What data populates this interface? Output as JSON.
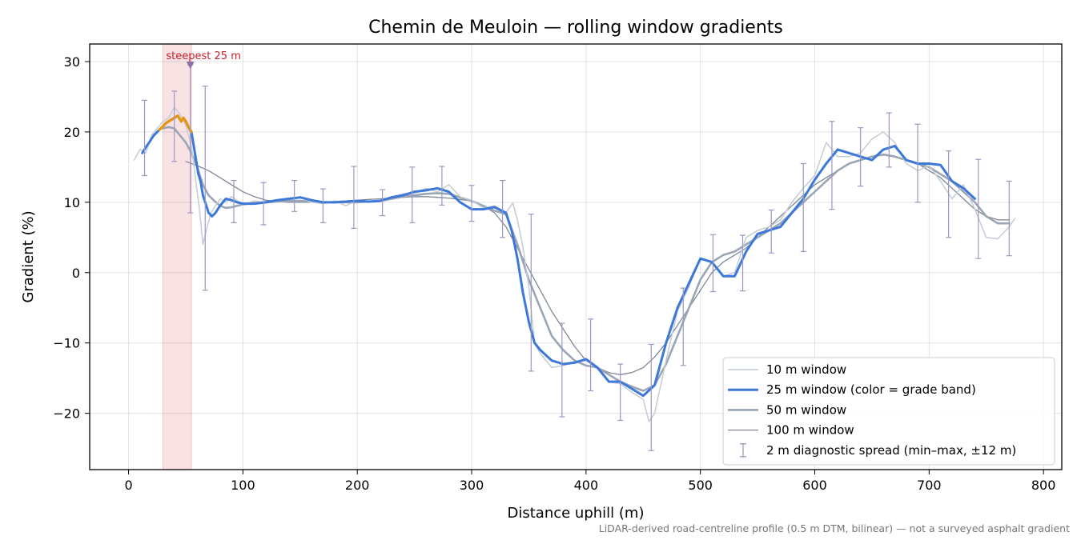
{
  "chart_data": {
    "type": "line",
    "title": "Chemin de Meuloin — rolling window gradients",
    "xlabel": "Distance uphill (m)",
    "ylabel": "Gradient (%)",
    "footnote": "LiDAR-derived road-centreline profile (0.5 m DTM, bilinear) — not a surveyed asphalt gradient",
    "xlim": [
      -34,
      816
    ],
    "ylim": [
      -28,
      32.5
    ],
    "x_ticks": [
      0,
      100,
      200,
      300,
      400,
      500,
      600,
      700,
      800
    ],
    "y_ticks": [
      30,
      20,
      10,
      0,
      -10,
      -20
    ],
    "y_tick_labels": [
      "30",
      "20",
      "10",
      "0",
      "−10",
      "−20"
    ],
    "grid": true,
    "legend_position": "lower-right",
    "highlight": {
      "label": "steepest 25 m",
      "x_start": 30,
      "x_end": 55,
      "peak_x": 54,
      "peak_y": 30,
      "color": "#c9202f"
    },
    "series": [
      {
        "name": "10 m window",
        "color": "#c4ccd6",
        "x": [
          5,
          10,
          15,
          20,
          25,
          30,
          35,
          40,
          45,
          50,
          55,
          58,
          62,
          65,
          68,
          72,
          76,
          80,
          85,
          90,
          100,
          110,
          120,
          130,
          140,
          150,
          160,
          170,
          180,
          190,
          200,
          210,
          220,
          230,
          240,
          250,
          260,
          270,
          280,
          290,
          300,
          310,
          320,
          330,
          336,
          340,
          345,
          350,
          355,
          360,
          370,
          380,
          390,
          400,
          410,
          420,
          430,
          440,
          450,
          455,
          460,
          470,
          480,
          490,
          500,
          510,
          520,
          530,
          540,
          550,
          560,
          570,
          580,
          590,
          600,
          610,
          620,
          630,
          640,
          650,
          660,
          670,
          680,
          690,
          700,
          710,
          720,
          730,
          740,
          750,
          760,
          770,
          775
        ],
        "y": [
          16,
          17.5,
          17,
          19.5,
          20.5,
          21.5,
          22,
          23.5,
          22.5,
          21,
          18,
          14,
          9,
          4,
          6,
          8.5,
          9.5,
          10.5,
          10,
          10.8,
          9.7,
          10.2,
          10,
          10.2,
          10.5,
          10.8,
          10,
          9.8,
          10.2,
          9.5,
          10.3,
          10.1,
          10.2,
          10.8,
          11.2,
          11.3,
          12,
          11.5,
          12.5,
          10.8,
          10.3,
          9.2,
          9.5,
          8.5,
          9.9,
          7.5,
          3.5,
          -2,
          -10,
          -11.5,
          -13.5,
          -13.2,
          -12.8,
          -12.5,
          -13.5,
          -15.5,
          -15.8,
          -17,
          -18,
          -21.2,
          -20,
          -12.5,
          -5.5,
          -2,
          2,
          1.5,
          -0.5,
          0,
          5,
          6,
          6.5,
          7.5,
          10,
          12,
          13.8,
          18.5,
          16.5,
          16.5,
          17,
          19,
          20,
          18.5,
          15.5,
          14.5,
          15.2,
          13,
          10.5,
          12.5,
          9,
          5,
          4.8,
          6.5,
          7.7
        ]
      },
      {
        "name": "25 m window (color = grade band)",
        "color": "#3c78d8",
        "highlight_color": "#e6960c",
        "x": [
          12,
          15,
          18,
          22,
          25,
          27,
          30,
          33,
          36,
          40,
          43,
          46,
          48,
          50,
          53,
          55,
          58,
          61,
          63,
          65,
          68,
          70,
          73,
          76,
          80,
          85,
          90,
          95,
          100,
          110,
          120,
          130,
          140,
          150,
          160,
          170,
          180,
          190,
          200,
          210,
          220,
          230,
          240,
          250,
          260,
          270,
          280,
          290,
          300,
          310,
          320,
          330,
          335,
          340,
          345,
          350,
          355,
          360,
          370,
          380,
          390,
          400,
          410,
          420,
          430,
          440,
          450,
          460,
          470,
          480,
          490,
          500,
          510,
          520,
          530,
          540,
          550,
          560,
          570,
          580,
          590,
          600,
          610,
          620,
          630,
          640,
          650,
          660,
          670,
          680,
          690,
          700,
          710,
          720,
          730,
          740
        ],
        "y": [
          17,
          17.8,
          18.5,
          19.5,
          20,
          20.3,
          20.8,
          21.3,
          21.6,
          22,
          22.3,
          21.5,
          22,
          21.5,
          20.5,
          20,
          17,
          14,
          13,
          11,
          9.5,
          8.5,
          8,
          8.5,
          9.5,
          10.5,
          10.3,
          10,
          9.8,
          9.8,
          10,
          10.3,
          10.5,
          10.7,
          10.3,
          10,
          10,
          10.1,
          10.2,
          10.1,
          10.2,
          10.7,
          11,
          11.5,
          11.7,
          12,
          11.5,
          10,
          9,
          9,
          9.3,
          8.5,
          6,
          2,
          -3,
          -7,
          -10,
          -11,
          -12.5,
          -13,
          -12.8,
          -12.3,
          -13.5,
          -15.5,
          -15.5,
          -16.5,
          -17.5,
          -16,
          -10,
          -5,
          -1.5,
          2,
          1.5,
          -0.5,
          -0.5,
          3,
          5.5,
          6,
          6.5,
          8.5,
          10.5,
          13.2,
          15.5,
          17.5,
          17,
          16.5,
          16,
          17.5,
          18,
          16,
          15.5,
          15.5,
          15.3,
          13,
          12,
          10.5
        ],
        "highlight_range": [
          27,
          55
        ]
      },
      {
        "name": "50 m window",
        "color": "#9aa6b6",
        "x": [
          30,
          35,
          40,
          45,
          50,
          55,
          60,
          65,
          70,
          75,
          80,
          85,
          90,
          95,
          100,
          110,
          120,
          130,
          140,
          150,
          160,
          170,
          180,
          190,
          200,
          210,
          220,
          230,
          240,
          250,
          260,
          270,
          280,
          290,
          300,
          310,
          320,
          330,
          340,
          350,
          360,
          370,
          380,
          390,
          400,
          410,
          420,
          430,
          440,
          450,
          460,
          470,
          480,
          490,
          500,
          510,
          520,
          530,
          540,
          550,
          560,
          570,
          580,
          590,
          600,
          610,
          620,
          630,
          640,
          650,
          660,
          670,
          680,
          690,
          700,
          710,
          720,
          730,
          740,
          750,
          760,
          770
        ],
        "y": [
          20.5,
          20.7,
          20.5,
          19.5,
          18.5,
          17,
          15,
          12.5,
          11,
          10.2,
          9.5,
          9.2,
          9.3,
          9.5,
          9.7,
          9.9,
          10,
          10.1,
          10.2,
          10.2,
          10.1,
          10,
          10,
          10,
          10,
          10.1,
          10.2,
          10.5,
          10.8,
          11,
          11.2,
          11.3,
          11.2,
          10.7,
          10.2,
          9.5,
          8.8,
          8.3,
          4,
          -1,
          -5,
          -9,
          -11,
          -12.5,
          -13.2,
          -13.5,
          -14.5,
          -15.5,
          -16.2,
          -16.8,
          -16,
          -13,
          -9,
          -5,
          -1,
          1.5,
          2.5,
          3,
          4,
          5,
          6,
          7,
          8.5,
          10,
          11.5,
          13,
          14.5,
          15.5,
          16,
          16.5,
          16.8,
          16.5,
          16,
          15.5,
          15,
          14,
          13,
          11.5,
          10,
          8,
          7,
          7
        ]
      },
      {
        "name": "100 m window",
        "color": "#7f8797",
        "x": [
          50,
          60,
          70,
          80,
          90,
          100,
          110,
          120,
          130,
          140,
          150,
          160,
          170,
          180,
          190,
          200,
          210,
          220,
          230,
          240,
          250,
          260,
          270,
          280,
          290,
          300,
          310,
          320,
          330,
          340,
          350,
          360,
          370,
          380,
          390,
          400,
          410,
          420,
          430,
          440,
          450,
          460,
          470,
          480,
          490,
          500,
          510,
          520,
          530,
          540,
          550,
          560,
          570,
          580,
          590,
          600,
          610,
          620,
          630,
          640,
          650,
          660,
          670,
          680,
          690,
          700,
          710,
          720,
          730,
          740,
          750,
          760,
          770
        ],
        "y": [
          15.8,
          15.2,
          14.5,
          13.5,
          12.5,
          11.5,
          10.8,
          10.3,
          10.1,
          10,
          10,
          10,
          10,
          10.1,
          10.2,
          10.3,
          10.4,
          10.5,
          10.6,
          10.7,
          10.8,
          10.8,
          10.7,
          10.6,
          10.4,
          10.2,
          9.5,
          8.5,
          6.5,
          3.5,
          0.5,
          -2.5,
          -5.5,
          -8,
          -10.5,
          -12.5,
          -13.5,
          -14.2,
          -14.5,
          -14.2,
          -13.5,
          -12,
          -10,
          -7.5,
          -5,
          -2.5,
          0,
          1.5,
          2.5,
          3.5,
          5,
          6.5,
          8,
          9.5,
          11,
          12.5,
          13.5,
          14.5,
          15.5,
          16,
          16.5,
          16.7,
          16.5,
          16,
          15.5,
          14.5,
          13.5,
          12,
          10.5,
          9,
          8,
          7.5,
          7.5
        ]
      }
    ],
    "error_bars": {
      "name": "2 m diagnostic spread (min–max, ±12 m)",
      "color": "#9c97c0",
      "x": [
        14,
        40,
        54,
        67,
        92,
        118,
        145,
        170,
        197,
        222,
        248,
        274,
        300,
        327,
        352,
        379,
        404,
        430,
        457,
        485,
        511,
        537,
        562,
        590,
        615,
        640,
        665,
        690,
        717,
        743,
        770
      ],
      "low": [
        13.8,
        15.8,
        8.5,
        -2.5,
        7.1,
        6.8,
        8.7,
        7.1,
        6.3,
        8.1,
        7.1,
        9.6,
        7.3,
        5,
        -14,
        -20.5,
        -16.8,
        -21,
        -25.3,
        -13.2,
        -2.7,
        -2.6,
        2.8,
        3,
        9,
        12.3,
        15,
        10,
        5,
        2,
        2.4
      ],
      "high": [
        24.5,
        25.8,
        29.5,
        26.5,
        13.1,
        12.8,
        13.1,
        11.9,
        15.1,
        11.8,
        15,
        15.1,
        12.4,
        13.1,
        8.3,
        -7.2,
        -6.6,
        -13,
        -10.2,
        -2.2,
        5.4,
        5.3,
        8.9,
        15.5,
        21.5,
        20.6,
        22.7,
        21.1,
        17.3,
        16.1,
        13
      ]
    }
  }
}
